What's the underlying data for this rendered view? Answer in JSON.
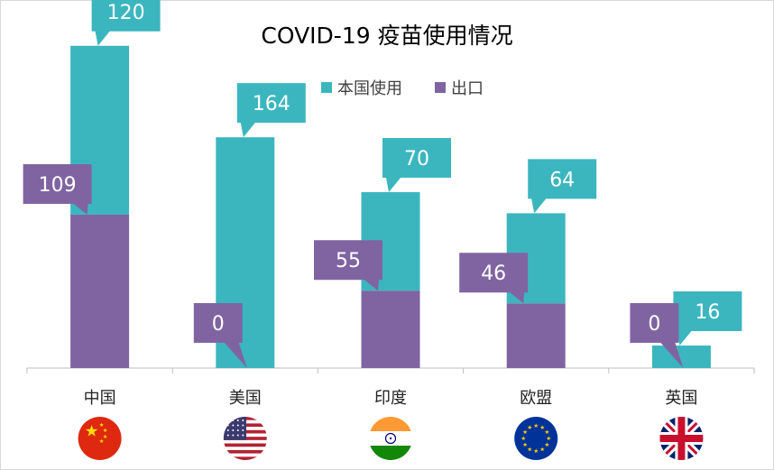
{
  "chart_data": {
    "type": "bar",
    "stacked": true,
    "title": "COVID-19 疫苗使用情况",
    "categories": [
      "中国",
      "美国",
      "印度",
      "欧盟",
      "英国"
    ],
    "series": [
      {
        "name": "出口",
        "values": [
          109,
          0,
          55,
          46,
          0
        ],
        "color": "#8064a2"
      },
      {
        "name": "本国使用",
        "values": [
          120,
          164,
          70,
          64,
          16
        ],
        "color": "#3bb6bf"
      }
    ],
    "legend_position": "top",
    "grid": false,
    "icons": [
      "china-flag-icon",
      "usa-flag-icon",
      "india-flag-icon",
      "eu-flag-icon",
      "uk-flag-icon"
    ]
  }
}
